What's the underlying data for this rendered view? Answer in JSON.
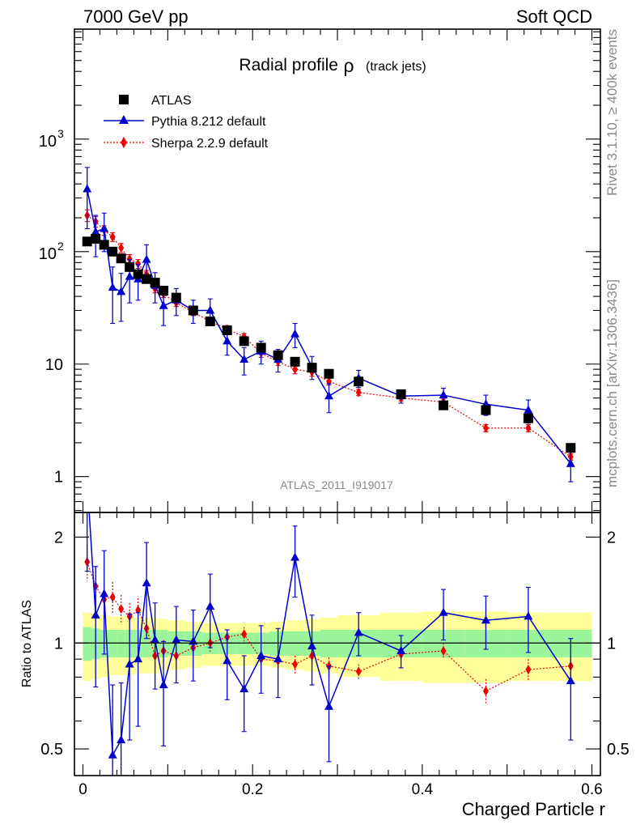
{
  "header": {
    "left": "7000 GeV pp",
    "right": "Soft QCD"
  },
  "side_labels": {
    "rivet": "Rivet 3.1.10, ≥ 400k events",
    "mcplots": "mcplots.cern.ch [arXiv:1306.3436]"
  },
  "chart_data": {
    "type": "scatter",
    "title_main": "Radial profile",
    "title_rho": "ρ",
    "title_sub": "(track jets)",
    "analysis_id": "ATLAS_2011_I919017",
    "xlabel": "Charged Particle r",
    "ylabel_ratio": "Ratio to ATLAS",
    "xlim": [
      -0.01,
      0.61
    ],
    "ylim_main": [
      0.48,
      9500
    ],
    "ylim_ratio": [
      0.42,
      2.35
    ],
    "x_ticks": [
      {
        "v": 0,
        "label": "0"
      },
      {
        "v": 0.2,
        "label": "0.2"
      },
      {
        "v": 0.4,
        "label": "0.4"
      },
      {
        "v": 0.6,
        "label": "0.6"
      }
    ],
    "y_ticks_main": [
      {
        "v": 1,
        "label": "1",
        "pow": false
      },
      {
        "v": 10,
        "label": "10",
        "pow": false
      },
      {
        "v": 100,
        "label": "10",
        "pow": true,
        "exp": "2"
      },
      {
        "v": 1000,
        "label": "10",
        "pow": true,
        "exp": "3"
      }
    ],
    "y_ticks_ratio": [
      {
        "v": 0.5,
        "label": "0.5"
      },
      {
        "v": 1,
        "label": "1"
      },
      {
        "v": 2,
        "label": "2"
      }
    ],
    "legend": [
      {
        "name": "ATLAS",
        "color": "#000000",
        "marker": "square"
      },
      {
        "name": "Pythia 8.212 default",
        "color": "#0000cc",
        "marker": "triangle"
      },
      {
        "name": "Sherpa 2.2.9 default",
        "color": "#ee0000",
        "marker": "diamond"
      }
    ],
    "x": [
      0.005,
      0.015,
      0.025,
      0.035,
      0.045,
      0.055,
      0.065,
      0.075,
      0.085,
      0.095,
      0.11,
      0.13,
      0.15,
      0.17,
      0.19,
      0.21,
      0.23,
      0.25,
      0.27,
      0.29,
      0.325,
      0.375,
      0.425,
      0.475,
      0.525,
      0.575
    ],
    "bin_edges": [
      0.0,
      0.01,
      0.02,
      0.03,
      0.04,
      0.05,
      0.06,
      0.07,
      0.08,
      0.09,
      0.1,
      0.12,
      0.14,
      0.16,
      0.18,
      0.2,
      0.22,
      0.24,
      0.26,
      0.28,
      0.3,
      0.35,
      0.4,
      0.45,
      0.5,
      0.55,
      0.6
    ],
    "atlas": [
      123,
      130,
      115,
      100,
      87,
      73,
      63,
      57,
      53,
      45,
      39,
      30,
      24,
      20,
      16,
      14,
      12,
      10.5,
      9.3,
      8.2,
      7.0,
      5.4,
      4.3,
      3.9,
      3.3,
      1.8
    ],
    "pythia": [
      360,
      150,
      160,
      48,
      44,
      60,
      57,
      85,
      50,
      33,
      37,
      30,
      30,
      16,
      11,
      13,
      11,
      18.5,
      9.5,
      5.2,
      7.5,
      5.2,
      5.3,
      4.4,
      3.9,
      1.3
    ],
    "pythia_err": [
      200,
      60,
      60,
      25,
      20,
      25,
      20,
      30,
      15,
      11,
      10,
      7,
      8,
      4,
      3,
      3,
      2.5,
      4.5,
      2.2,
      1.5,
      1.3,
      0.7,
      0.8,
      0.9,
      0.9,
      0.4
    ],
    "sherpa": [
      210,
      185,
      155,
      135,
      108,
      86,
      78,
      63,
      47,
      42,
      35,
      29,
      24,
      20.5,
      17.5,
      12.5,
      10.5,
      9.0,
      8.5,
      7.0,
      5.6,
      5.0,
      4.6,
      2.7,
      2.7,
      1.5
    ],
    "sherpa_err": [
      25,
      20,
      15,
      12,
      10,
      8,
      7,
      5,
      4,
      3,
      2.5,
      2,
      2,
      1.5,
      1.2,
      1,
      0.8,
      0.8,
      0.7,
      0.5,
      0.35,
      0.3,
      0.3,
      0.2,
      0.2,
      0.1
    ],
    "pythia_ratio": [
      2.9,
      1.2,
      1.38,
      0.48,
      0.53,
      0.87,
      0.9,
      1.48,
      1.02,
      0.76,
      1.02,
      1.01,
      1.27,
      0.89,
      0.74,
      0.92,
      0.9,
      1.75,
      0.98,
      0.66,
      1.07,
      0.95,
      1.22,
      1.16,
      1.19,
      0.78
    ],
    "pythia_ratio_err": [
      1.3,
      0.45,
      0.45,
      0.28,
      0.24,
      0.34,
      0.32,
      0.45,
      0.28,
      0.25,
      0.25,
      0.23,
      0.3,
      0.2,
      0.18,
      0.2,
      0.2,
      0.4,
      0.22,
      0.2,
      0.15,
      0.1,
      0.2,
      0.2,
      0.25,
      0.25
    ],
    "sherpa_ratio": [
      1.7,
      1.45,
      1.33,
      1.35,
      1.25,
      1.19,
      1.24,
      1.1,
      0.92,
      0.95,
      0.92,
      0.97,
      1.0,
      1.04,
      1.06,
      0.9,
      0.89,
      0.87,
      0.92,
      0.86,
      0.83,
      0.93,
      0.95,
      0.73,
      0.84,
      0.86
    ],
    "sherpa_ratio_err": [
      0.2,
      0.18,
      0.15,
      0.14,
      0.12,
      0.11,
      0.1,
      0.08,
      0.08,
      0.07,
      0.06,
      0.06,
      0.06,
      0.05,
      0.05,
      0.05,
      0.05,
      0.05,
      0.05,
      0.05,
      0.04,
      0.04,
      0.05,
      0.06,
      0.06,
      0.06
    ],
    "band_green": [
      0.11,
      0.1,
      0.09,
      0.09,
      0.09,
      0.09,
      0.09,
      0.09,
      0.09,
      0.09,
      0.08,
      0.08,
      0.07,
      0.07,
      0.07,
      0.07,
      0.08,
      0.08,
      0.08,
      0.09,
      0.09,
      0.09,
      0.09,
      0.09,
      0.09,
      0.09
    ],
    "band_yellow": [
      0.22,
      0.21,
      0.2,
      0.19,
      0.19,
      0.19,
      0.18,
      0.18,
      0.18,
      0.17,
      0.16,
      0.15,
      0.14,
      0.14,
      0.14,
      0.14,
      0.15,
      0.16,
      0.17,
      0.18,
      0.2,
      0.22,
      0.23,
      0.23,
      0.22,
      0.22
    ]
  }
}
